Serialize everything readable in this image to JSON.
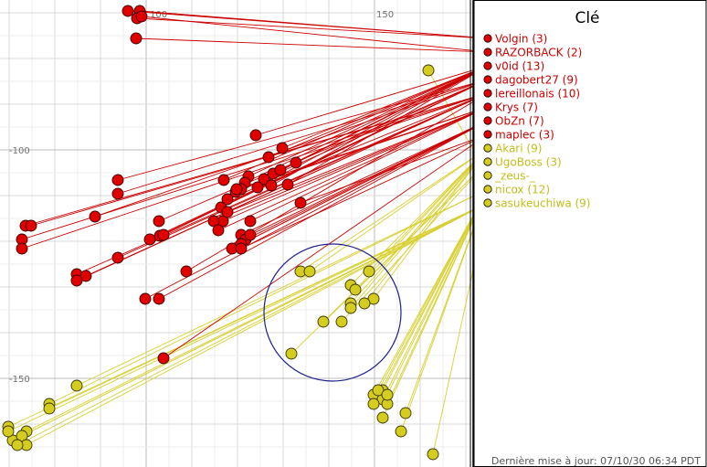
{
  "legend": {
    "title": "Clé",
    "items": [
      {
        "label": "Volgin (3)",
        "group": "red"
      },
      {
        "label": "RAZORBACK (2)",
        "group": "red"
      },
      {
        "label": "v0id (13)",
        "group": "red"
      },
      {
        "label": "dagobert27 (9)",
        "group": "red"
      },
      {
        "label": "lereillonais (10)",
        "group": "red"
      },
      {
        "label": "Krys (7)",
        "group": "red"
      },
      {
        "label": "ObZn (7)",
        "group": "red"
      },
      {
        "label": "maplec (3)",
        "group": "red"
      },
      {
        "label": "Akari (9)",
        "group": "yellow"
      },
      {
        "label": "UgoBoss (3)",
        "group": "yellow"
      },
      {
        "label": "_zeus-_",
        "group": "yellow"
      },
      {
        "label": "nicox (12)",
        "group": "yellow"
      },
      {
        "label": "sasukeuchiwa (9)",
        "group": "yellow"
      }
    ]
  },
  "axis_labels": {
    "top": [
      "100",
      "150"
    ],
    "left": [
      "-100",
      "-150"
    ]
  },
  "footer": "Dernière mise à jour: 07/10/30 06:34 PDT",
  "colors": {
    "red_fill": "#e00000",
    "red_line": "#cc0000",
    "yellow_fill": "#d4cc1e",
    "yellow_line": "#d8d030",
    "circle": "#1f1f8f",
    "grid": "#d8d8d8"
  },
  "marker_groups": {
    "red": [
      {
        "owner": "Volgin (3)",
        "count": 3
      },
      {
        "owner": "RAZORBACK (2)",
        "count": 2
      },
      {
        "owner": "v0id (13)",
        "count": 13
      },
      {
        "owner": "dagobert27 (9)",
        "count": 9
      },
      {
        "owner": "lereillonais (10)",
        "count": 10
      },
      {
        "owner": "Krys (7)",
        "count": 7
      },
      {
        "owner": "ObZn (7)",
        "count": 7
      },
      {
        "owner": "maplec (3)",
        "count": 3
      }
    ],
    "yellow": [
      {
        "owner": "Akari (9)",
        "count": 9
      },
      {
        "owner": "UgoBoss (3)",
        "count": 3
      },
      {
        "owner": "_zeus-_",
        "count": 0
      },
      {
        "owner": "nicox (12)",
        "count": 12
      },
      {
        "owner": "sasukeuchiwa (9)",
        "count": 9
      }
    ]
  }
}
